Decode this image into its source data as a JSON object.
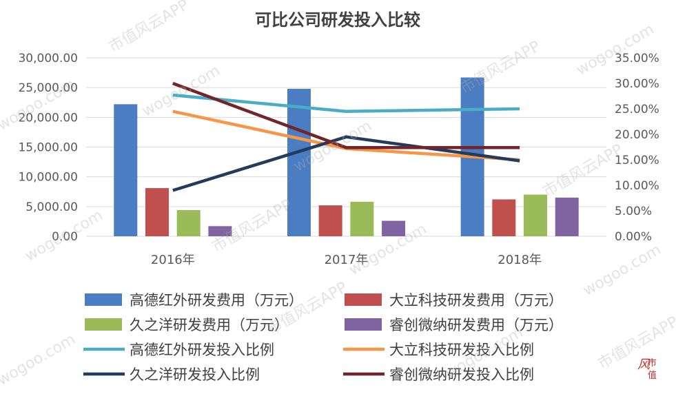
{
  "watermark": {
    "app": "市值风云APP",
    "domain": "wogoo.com"
  },
  "logo": {
    "char1": "风",
    "char2": "市",
    "char3": "值"
  },
  "colors": {
    "bar1": "#4a7dc1",
    "bar2": "#c0504d",
    "bar3": "#9bbb59",
    "bar4": "#8064a2",
    "line1": "#4bacc6",
    "line2": "#f79646",
    "line3": "#233b5d",
    "line4": "#72242a",
    "axis_text": "#595959",
    "grid": "#d9d9d9"
  },
  "chart_data": {
    "type": "bar",
    "title": "可比公司研发投入比较",
    "categories": [
      "2016年",
      "2017年",
      "2018年"
    ],
    "y_left": {
      "min": 0,
      "max": 30000,
      "step": 5000,
      "ticks": [
        "0.00",
        "5,000.00",
        "10,000.00",
        "15,000.00",
        "20,000.00",
        "25,000.00",
        "30,000.00"
      ]
    },
    "y_right": {
      "min": 0,
      "max": 0.35,
      "step": 0.05,
      "ticks": [
        "0.00%",
        "5.00%",
        "10.00%",
        "15.00%",
        "20.00%",
        "25.00%",
        "30.00%",
        "35.00%"
      ]
    },
    "bar_series": [
      {
        "name": "高德红外研发费用（万元）",
        "values": [
          22200,
          24800,
          26700
        ]
      },
      {
        "name": "大立科技研发费用（万元）",
        "values": [
          8100,
          5200,
          6200
        ]
      },
      {
        "name": "久之洋研发费用（万元）",
        "values": [
          4400,
          5800,
          7000
        ]
      },
      {
        "name": "睿创微纳研发费用（万元）",
        "values": [
          1700,
          2600,
          6500
        ]
      }
    ],
    "line_series": [
      {
        "name": "高德红外研发投入比例",
        "values": [
          0.277,
          0.245,
          0.25
        ]
      },
      {
        "name": "大立科技研发投入比例",
        "values": [
          0.245,
          0.172,
          0.15
        ]
      },
      {
        "name": "久之洋研发投入比例",
        "values": [
          0.09,
          0.195,
          0.148
        ]
      },
      {
        "name": "睿创微纳研发投入比例",
        "values": [
          0.3,
          0.174,
          0.174
        ]
      }
    ],
    "legend_position": "bottom"
  }
}
